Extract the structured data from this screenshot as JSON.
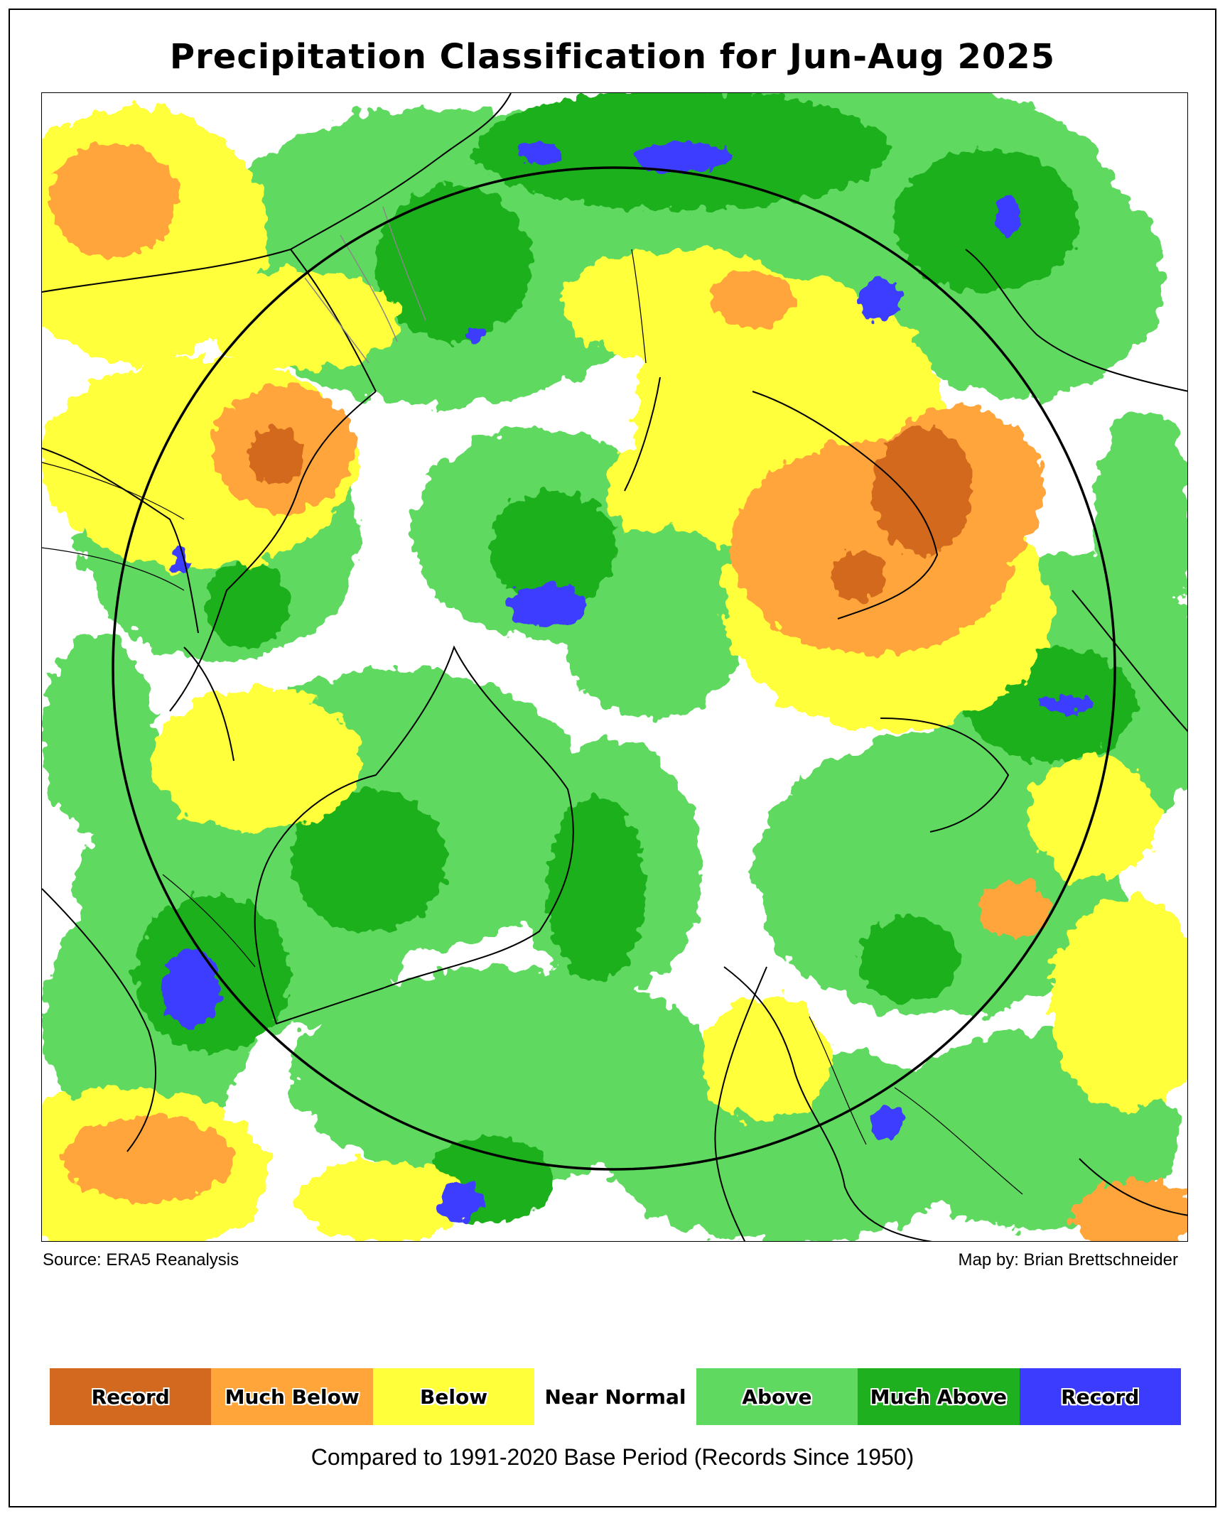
{
  "title": "Precipitation Classification for Jun-Aug 2025",
  "source_text": "Source: ERA5 Reanalysis",
  "credit_text": "Map by: Brian Brettschneider",
  "base_period_text": "Compared to 1991-2020 Base Period   (Records Since 1950)",
  "legend": [
    {
      "label": "Record",
      "color": "#d2691e"
    },
    {
      "label": "Much Below",
      "color": "#ffa53a"
    },
    {
      "label": "Below",
      "color": "#ffff3a"
    },
    {
      "label": "Near Normal",
      "color": "#ffffff"
    },
    {
      "label": "Above",
      "color": "#5fd95f"
    },
    {
      "label": "Much Above",
      "color": "#1fb01f"
    },
    {
      "label": "Record",
      "color": "#3c3cff"
    }
  ]
}
